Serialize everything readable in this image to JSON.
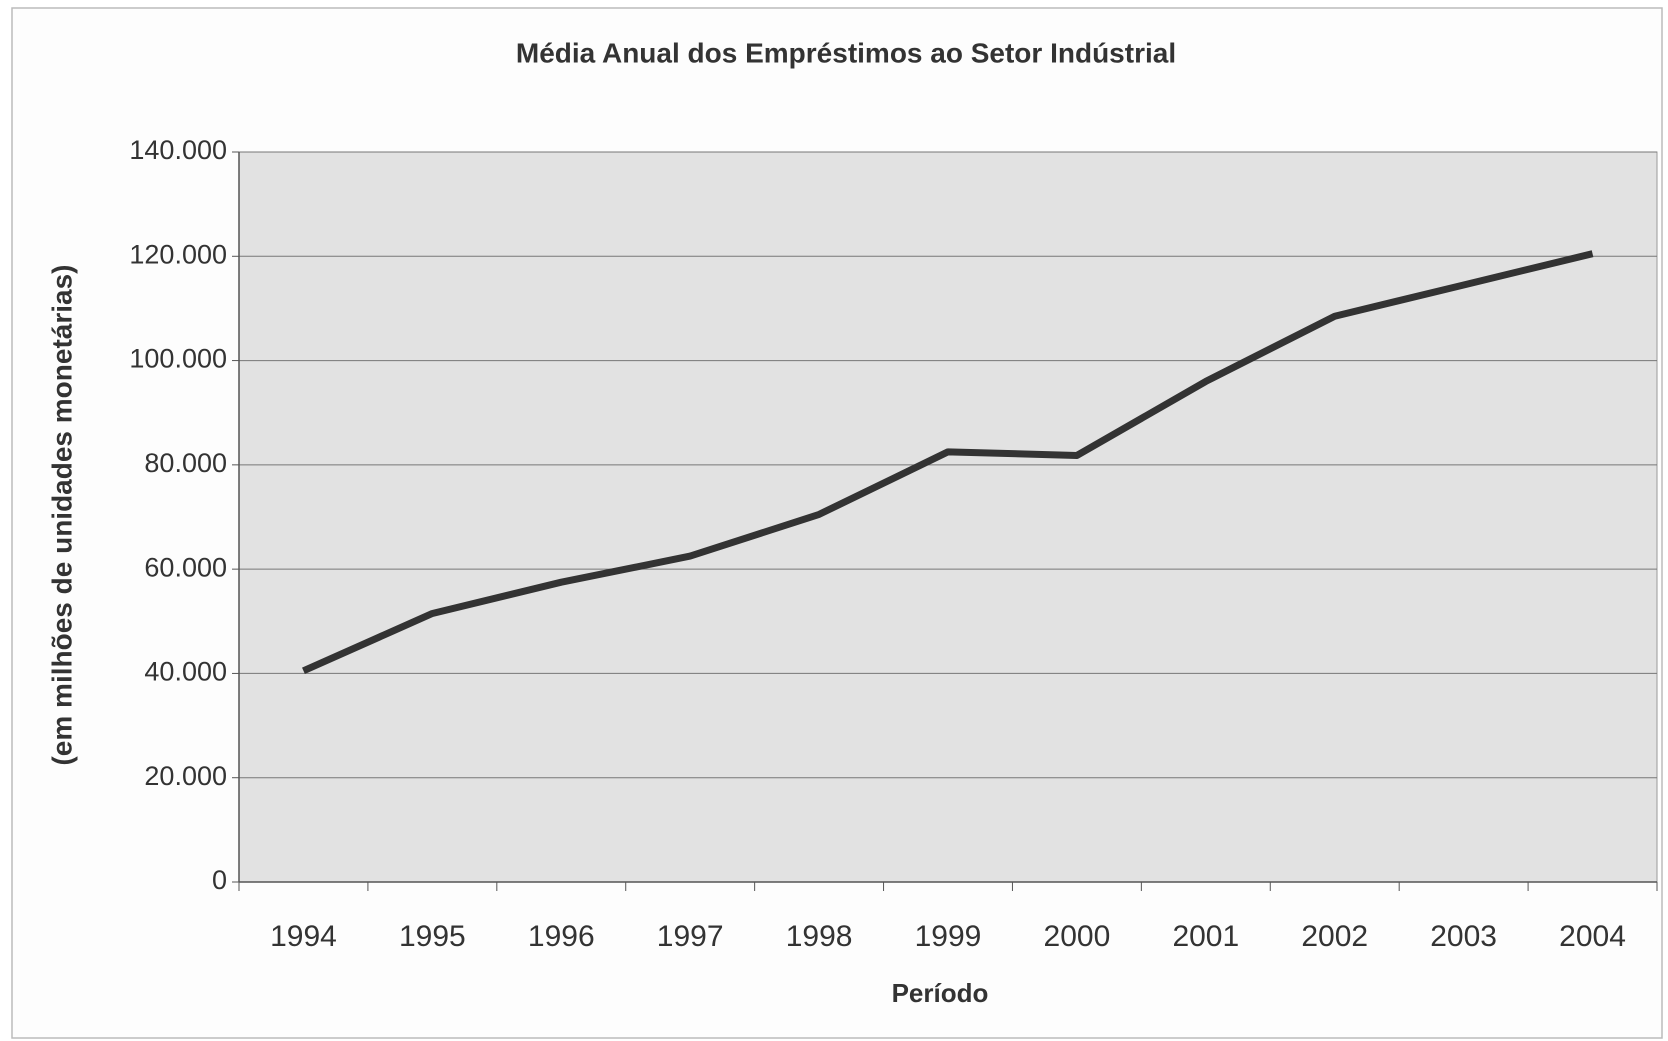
{
  "chart_data": {
    "type": "line",
    "title": "Média Anual dos Empréstimos ao Setor Indústrial",
    "x_label": "Período",
    "y_label": "(em milhões de unidades monetárias)",
    "categories": [
      "1994",
      "1995",
      "1996",
      "1997",
      "1998",
      "1999",
      "2000",
      "2001",
      "2002",
      "2003",
      "2004"
    ],
    "series": [
      {
        "name": null,
        "color": "#333333",
        "values": [
          40500,
          51500,
          57500,
          62500,
          70500,
          82500,
          81800,
          96000,
          108500,
          114500,
          120500
        ]
      }
    ],
    "ylim": [
      0,
      140000
    ],
    "yticks": [
      0,
      {
        "value": 20000,
        "label": "20.000"
      },
      {
        "value": 40000,
        "label": "40.000"
      },
      {
        "value": 60000,
        "label": "60.000"
      },
      {
        "value": 80000,
        "label": "80.000"
      },
      {
        "value": 100000,
        "label": "100.000"
      },
      {
        "value": 120000,
        "label": "120.000"
      },
      {
        "value": 140000,
        "label": "140.000"
      }
    ],
    "grid": true
  }
}
